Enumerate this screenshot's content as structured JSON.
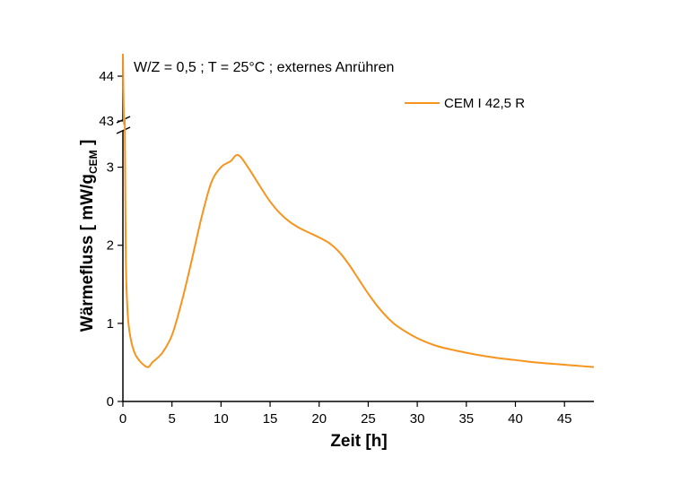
{
  "chart_data": {
    "type": "line",
    "title": "",
    "annotation": "W/Z = 0,5 ; T = 25°C ; externes Anrühren",
    "xlabel": "Zeit [h]",
    "ylabel_main": "Wärmefluss [ mW/g",
    "ylabel_sub": "CEM",
    "ylabel_close": " ]",
    "xlim": [
      0,
      48
    ],
    "ylim_lower": [
      0,
      3.5
    ],
    "ylim_upper": [
      42.8,
      44.5
    ],
    "axis_break": true,
    "x_ticks": [
      0,
      5,
      10,
      15,
      20,
      25,
      30,
      35,
      40,
      45
    ],
    "x_tick_labels": [
      "0",
      "5",
      "10",
      "15",
      "20",
      "25",
      "30",
      "35",
      "40",
      "45"
    ],
    "y_ticks_lower": [
      0,
      1,
      2,
      3
    ],
    "y_tick_labels_lower": [
      "0",
      "1",
      "2",
      "3"
    ],
    "y_ticks_upper": [
      43,
      44
    ],
    "y_tick_labels_upper": [
      "43",
      "44"
    ],
    "grid": false,
    "legend_position": "top-right",
    "series": [
      {
        "name": "CEM I 42,5 R",
        "color": "#f7941d",
        "x": [
          0,
          0.1,
          0.2,
          0.3,
          0.5,
          0.8,
          1.2,
          1.7,
          2.2,
          2.6,
          3.0,
          4.0,
          5.0,
          6.0,
          7.0,
          8.0,
          9.0,
          10.0,
          11.0,
          11.5,
          12.0,
          13.0,
          14.0,
          15.0,
          16.0,
          17.0,
          18.0,
          19.0,
          20.0,
          21.0,
          22.0,
          23.0,
          24.0,
          25.0,
          26.0,
          27.0,
          28.0,
          30.0,
          32.0,
          34.0,
          36.0,
          38.0,
          40.0,
          42.0,
          44.0,
          46.0,
          48.0
        ],
        "y": [
          44.5,
          43.0,
          3.5,
          1.8,
          1.1,
          0.8,
          0.62,
          0.52,
          0.46,
          0.44,
          0.5,
          0.62,
          0.85,
          1.28,
          1.8,
          2.35,
          2.8,
          3.0,
          3.08,
          3.15,
          3.13,
          2.95,
          2.75,
          2.56,
          2.41,
          2.3,
          2.22,
          2.16,
          2.1,
          2.03,
          1.92,
          1.76,
          1.57,
          1.38,
          1.21,
          1.07,
          0.96,
          0.81,
          0.71,
          0.65,
          0.6,
          0.56,
          0.53,
          0.5,
          0.48,
          0.46,
          0.44
        ]
      }
    ]
  }
}
